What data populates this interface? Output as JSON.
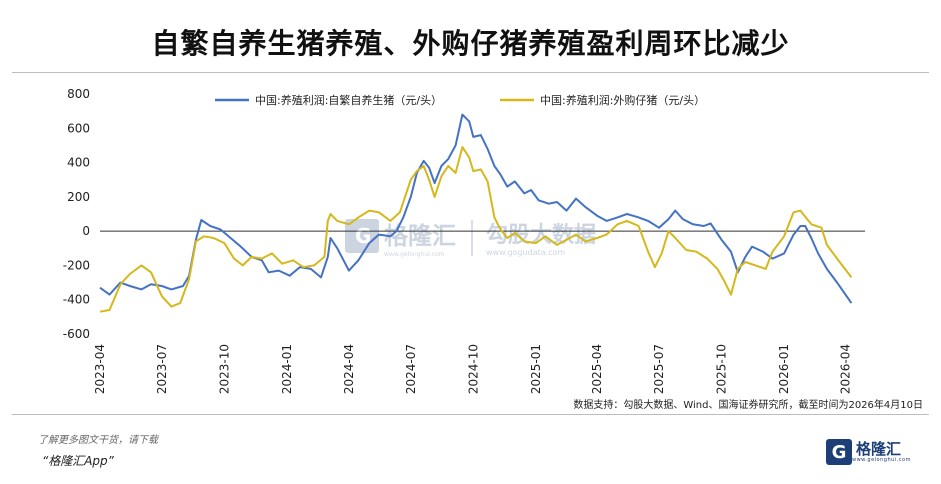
{
  "page": {
    "title": "自繁自养生猪养殖、外购仔猪养殖盈利周环比减少",
    "source": "数据支持：勾股大数据、Wind、国海证券研究所，截至时间为2026年4月10日",
    "footer_note": "了解更多图文干货，请下载",
    "footer_app": "“格隆汇App”",
    "logo_text": "格隆汇",
    "logo_sub": "www.gelonghui.com",
    "watermark_brand": "格隆汇",
    "watermark_brand2": "勾股大数据",
    "watermark_url2": "www.gogudata.com"
  },
  "chart_data": {
    "type": "line",
    "title": "",
    "xlabel": "",
    "ylabel": "",
    "ylim": [
      -600,
      800
    ],
    "yticks": [
      -600,
      -400,
      -200,
      0,
      200,
      400,
      600,
      800
    ],
    "xlim": [
      "2023-04-01",
      "2026-04-30"
    ],
    "xticks": [
      "2023-04",
      "2023-07",
      "2023-10",
      "2024-01",
      "2024-04",
      "2024-07",
      "2024-10",
      "2025-01",
      "2025-04",
      "2025-07",
      "2025-10",
      "2026-01",
      "2026-04"
    ],
    "legend_position": "top",
    "series": [
      {
        "name": "中国:养殖利润:自繁自养生猪（元/头）",
        "color": "#4472c4",
        "points": [
          [
            "2023-04-01",
            -330
          ],
          [
            "2023-04-15",
            -370
          ],
          [
            "2023-05-01",
            -300
          ],
          [
            "2023-05-15",
            -320
          ],
          [
            "2023-06-01",
            -340
          ],
          [
            "2023-06-15",
            -310
          ],
          [
            "2023-07-01",
            -320
          ],
          [
            "2023-07-15",
            -340
          ],
          [
            "2023-08-01",
            -320
          ],
          [
            "2023-08-10",
            -260
          ],
          [
            "2023-08-20",
            -50
          ],
          [
            "2023-08-28",
            65
          ],
          [
            "2023-09-10",
            30
          ],
          [
            "2023-09-25",
            10
          ],
          [
            "2023-10-10",
            -40
          ],
          [
            "2023-10-25",
            -90
          ],
          [
            "2023-11-10",
            -150
          ],
          [
            "2023-11-25",
            -170
          ],
          [
            "2023-12-05",
            -240
          ],
          [
            "2023-12-20",
            -230
          ],
          [
            "2024-01-05",
            -260
          ],
          [
            "2024-01-20",
            -210
          ],
          [
            "2024-02-05",
            -220
          ],
          [
            "2024-02-20",
            -270
          ],
          [
            "2024-03-01",
            -150
          ],
          [
            "2024-03-05",
            -40
          ],
          [
            "2024-03-15",
            -100
          ],
          [
            "2024-04-01",
            -230
          ],
          [
            "2024-04-15",
            -170
          ],
          [
            "2024-05-01",
            -70
          ],
          [
            "2024-05-15",
            -20
          ],
          [
            "2024-06-01",
            -30
          ],
          [
            "2024-06-10",
            0
          ],
          [
            "2024-06-20",
            80
          ],
          [
            "2024-07-01",
            200
          ],
          [
            "2024-07-10",
            340
          ],
          [
            "2024-07-20",
            410
          ],
          [
            "2024-07-28",
            370
          ],
          [
            "2024-08-05",
            280
          ],
          [
            "2024-08-15",
            380
          ],
          [
            "2024-08-25",
            420
          ],
          [
            "2024-09-05",
            500
          ],
          [
            "2024-09-15",
            680
          ],
          [
            "2024-09-25",
            640
          ],
          [
            "2024-10-01",
            550
          ],
          [
            "2024-10-12",
            560
          ],
          [
            "2024-10-22",
            480
          ],
          [
            "2024-11-01",
            380
          ],
          [
            "2024-11-10",
            330
          ],
          [
            "2024-11-20",
            260
          ],
          [
            "2024-12-01",
            290
          ],
          [
            "2024-12-15",
            220
          ],
          [
            "2024-12-25",
            240
          ],
          [
            "2025-01-05",
            180
          ],
          [
            "2025-01-20",
            160
          ],
          [
            "2025-02-01",
            170
          ],
          [
            "2025-02-15",
            120
          ],
          [
            "2025-03-01",
            190
          ],
          [
            "2025-03-15",
            140
          ],
          [
            "2025-04-01",
            90
          ],
          [
            "2025-04-15",
            60
          ],
          [
            "2025-05-01",
            80
          ],
          [
            "2025-05-15",
            100
          ],
          [
            "2025-06-01",
            80
          ],
          [
            "2025-06-15",
            60
          ],
          [
            "2025-07-01",
            20
          ],
          [
            "2025-07-15",
            70
          ],
          [
            "2025-07-25",
            120
          ],
          [
            "2025-08-05",
            70
          ],
          [
            "2025-08-20",
            40
          ],
          [
            "2025-09-05",
            30
          ],
          [
            "2025-09-15",
            45
          ],
          [
            "2025-10-01",
            -50
          ],
          [
            "2025-10-15",
            -120
          ],
          [
            "2025-10-25",
            -240
          ],
          [
            "2025-11-05",
            -150
          ],
          [
            "2025-11-15",
            -90
          ],
          [
            "2025-12-01",
            -120
          ],
          [
            "2025-12-15",
            -160
          ],
          [
            "2026-01-01",
            -130
          ],
          [
            "2026-01-15",
            -20
          ],
          [
            "2026-01-25",
            30
          ],
          [
            "2026-02-01",
            30
          ],
          [
            "2026-02-10",
            -40
          ],
          [
            "2026-02-20",
            -130
          ],
          [
            "2026-03-05",
            -220
          ],
          [
            "2026-03-20",
            -300
          ],
          [
            "2026-04-10",
            -420
          ]
        ]
      },
      {
        "name": "中国:养殖利润:外购仔猪（元/头）",
        "color": "#d4b81c",
        "points": [
          [
            "2023-04-01",
            -470
          ],
          [
            "2023-04-15",
            -460
          ],
          [
            "2023-05-01",
            -310
          ],
          [
            "2023-05-15",
            -250
          ],
          [
            "2023-06-01",
            -200
          ],
          [
            "2023-06-15",
            -240
          ],
          [
            "2023-07-01",
            -380
          ],
          [
            "2023-07-15",
            -440
          ],
          [
            "2023-07-28",
            -420
          ],
          [
            "2023-08-10",
            -280
          ],
          [
            "2023-08-20",
            -60
          ],
          [
            "2023-09-01",
            -30
          ],
          [
            "2023-09-15",
            -40
          ],
          [
            "2023-10-01",
            -70
          ],
          [
            "2023-10-15",
            -160
          ],
          [
            "2023-10-28",
            -200
          ],
          [
            "2023-11-10",
            -150
          ],
          [
            "2023-11-25",
            -160
          ],
          [
            "2023-12-10",
            -130
          ],
          [
            "2023-12-25",
            -190
          ],
          [
            "2024-01-10",
            -170
          ],
          [
            "2024-01-25",
            -210
          ],
          [
            "2024-02-10",
            -200
          ],
          [
            "2024-02-25",
            -150
          ],
          [
            "2024-03-01",
            60
          ],
          [
            "2024-03-05",
            100
          ],
          [
            "2024-03-15",
            60
          ],
          [
            "2024-04-01",
            40
          ],
          [
            "2024-04-15",
            80
          ],
          [
            "2024-05-01",
            120
          ],
          [
            "2024-05-15",
            110
          ],
          [
            "2024-06-01",
            60
          ],
          [
            "2024-06-15",
            110
          ],
          [
            "2024-07-01",
            300
          ],
          [
            "2024-07-10",
            350
          ],
          [
            "2024-07-20",
            380
          ],
          [
            "2024-07-28",
            300
          ],
          [
            "2024-08-05",
            200
          ],
          [
            "2024-08-15",
            320
          ],
          [
            "2024-08-25",
            380
          ],
          [
            "2024-09-05",
            340
          ],
          [
            "2024-09-15",
            490
          ],
          [
            "2024-09-25",
            430
          ],
          [
            "2024-10-01",
            350
          ],
          [
            "2024-10-12",
            360
          ],
          [
            "2024-10-22",
            290
          ],
          [
            "2024-11-01",
            80
          ],
          [
            "2024-11-10",
            10
          ],
          [
            "2024-11-20",
            -40
          ],
          [
            "2024-12-01",
            -10
          ],
          [
            "2024-12-15",
            -60
          ],
          [
            "2025-01-01",
            -70
          ],
          [
            "2025-01-15",
            -30
          ],
          [
            "2025-02-01",
            -80
          ],
          [
            "2025-02-15",
            -50
          ],
          [
            "2025-03-01",
            -20
          ],
          [
            "2025-03-15",
            -60
          ],
          [
            "2025-04-01",
            -40
          ],
          [
            "2025-04-15",
            -20
          ],
          [
            "2025-05-01",
            40
          ],
          [
            "2025-05-15",
            60
          ],
          [
            "2025-06-01",
            30
          ],
          [
            "2025-06-15",
            -120
          ],
          [
            "2025-06-25",
            -210
          ],
          [
            "2025-07-05",
            -130
          ],
          [
            "2025-07-15",
            0
          ],
          [
            "2025-07-25",
            -40
          ],
          [
            "2025-08-10",
            -110
          ],
          [
            "2025-08-25",
            -120
          ],
          [
            "2025-09-10",
            -160
          ],
          [
            "2025-09-25",
            -220
          ],
          [
            "2025-10-05",
            -290
          ],
          [
            "2025-10-15",
            -370
          ],
          [
            "2025-10-25",
            -220
          ],
          [
            "2025-11-05",
            -180
          ],
          [
            "2025-11-20",
            -200
          ],
          [
            "2025-12-05",
            -220
          ],
          [
            "2025-12-15",
            -120
          ],
          [
            "2026-01-01",
            -30
          ],
          [
            "2026-01-15",
            110
          ],
          [
            "2026-01-25",
            120
          ],
          [
            "2026-02-10",
            40
          ],
          [
            "2026-02-25",
            20
          ],
          [
            "2026-03-05",
            -80
          ],
          [
            "2026-03-20",
            -160
          ],
          [
            "2026-04-10",
            -270
          ]
        ]
      }
    ]
  }
}
